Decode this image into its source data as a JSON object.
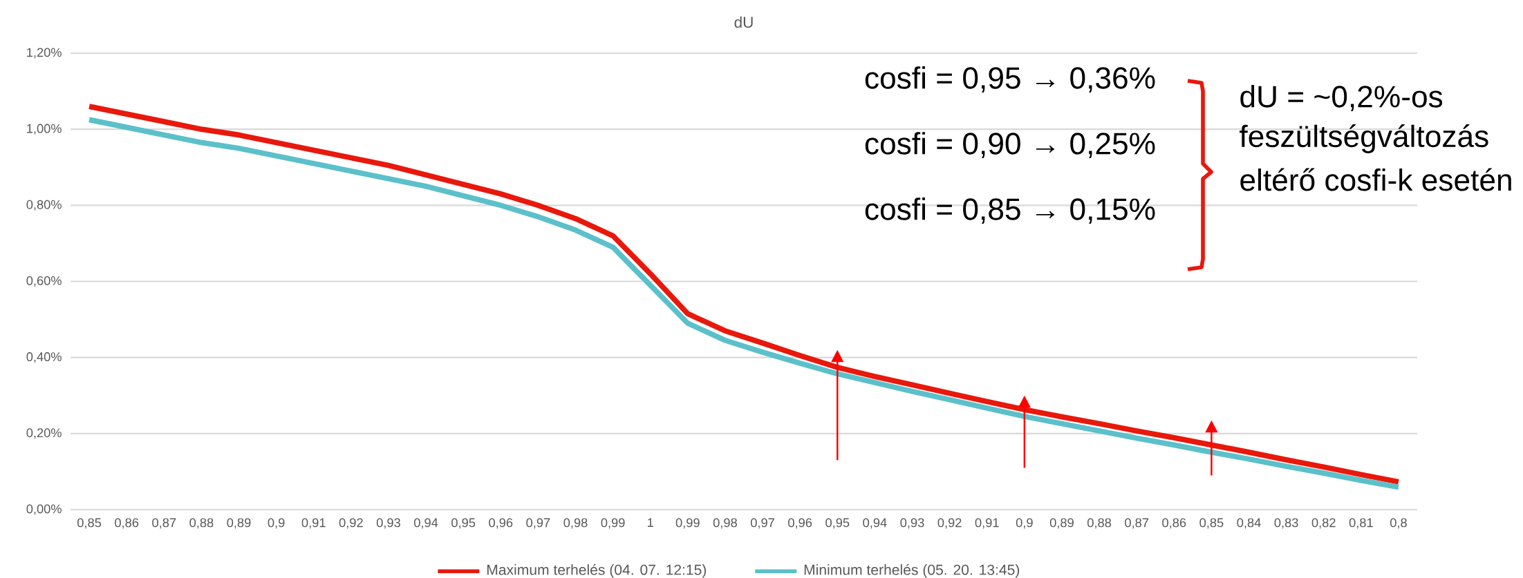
{
  "chart_data": {
    "type": "line",
    "title": "dU",
    "categories": [
      "0,85",
      "0,86",
      "0,87",
      "0,88",
      "0,89",
      "0,9",
      "0,91",
      "0,92",
      "0,93",
      "0,94",
      "0,95",
      "0,96",
      "0,97",
      "0,98",
      "0,99",
      "1",
      "0,99",
      "0,98",
      "0,97",
      "0,96",
      "0,95",
      "0,94",
      "0,93",
      "0,92",
      "0,91",
      "0,9",
      "0,89",
      "0,88",
      "0,87",
      "0,86",
      "0,85",
      "0,84",
      "0,83",
      "0,82",
      "0,81",
      "0,8"
    ],
    "series": [
      {
        "name": "Maximum terhelés (04. 07. 12:15)",
        "color": "#e8180c",
        "values": [
          1.06,
          1.04,
          1.02,
          1.0,
          0.985,
          0.965,
          0.945,
          0.925,
          0.905,
          0.88,
          0.855,
          0.83,
          0.8,
          0.765,
          0.72,
          0.62,
          0.515,
          0.47,
          0.438,
          0.405,
          0.374,
          0.35,
          0.328,
          0.306,
          0.284,
          0.263,
          0.244,
          0.226,
          0.207,
          0.189,
          0.17,
          0.151,
          0.131,
          0.112,
          0.092,
          0.073
        ]
      },
      {
        "name": "Minimum terhelés (05. 20. 13:45)",
        "color": "#5bc0ca",
        "values": [
          1.025,
          1.005,
          0.985,
          0.965,
          0.95,
          0.93,
          0.91,
          0.89,
          0.87,
          0.85,
          0.825,
          0.8,
          0.77,
          0.735,
          0.69,
          0.59,
          0.49,
          0.445,
          0.414,
          0.385,
          0.357,
          0.334,
          0.311,
          0.289,
          0.267,
          0.245,
          0.226,
          0.207,
          0.188,
          0.17,
          0.151,
          0.133,
          0.114,
          0.096,
          0.077,
          0.059
        ]
      }
    ],
    "ylim": [
      0,
      1.2
    ],
    "yticks": [
      {
        "value": 0,
        "label": "0,00%"
      },
      {
        "value": 0.2,
        "label": "0,20%"
      },
      {
        "value": 0.4,
        "label": "0,40%"
      },
      {
        "value": 0.6,
        "label": "0,60%"
      },
      {
        "value": 0.8,
        "label": "0,80%"
      },
      {
        "value": 1.0,
        "label": "1,00%"
      },
      {
        "value": 1.2,
        "label": "1,20%"
      }
    ],
    "grid": "y",
    "legend": "bottom",
    "marker": "none",
    "line_style": "solid",
    "annotations": [
      "cosfi = 0,95 → 0,36%",
      "cosfi = 0,90 → 0,25%",
      "cosfi = 0,85 → 0,15%",
      "dU = ~0,2%-os",
      "feszültségváltozás",
      "eltérő cosfi-k esetén"
    ]
  }
}
